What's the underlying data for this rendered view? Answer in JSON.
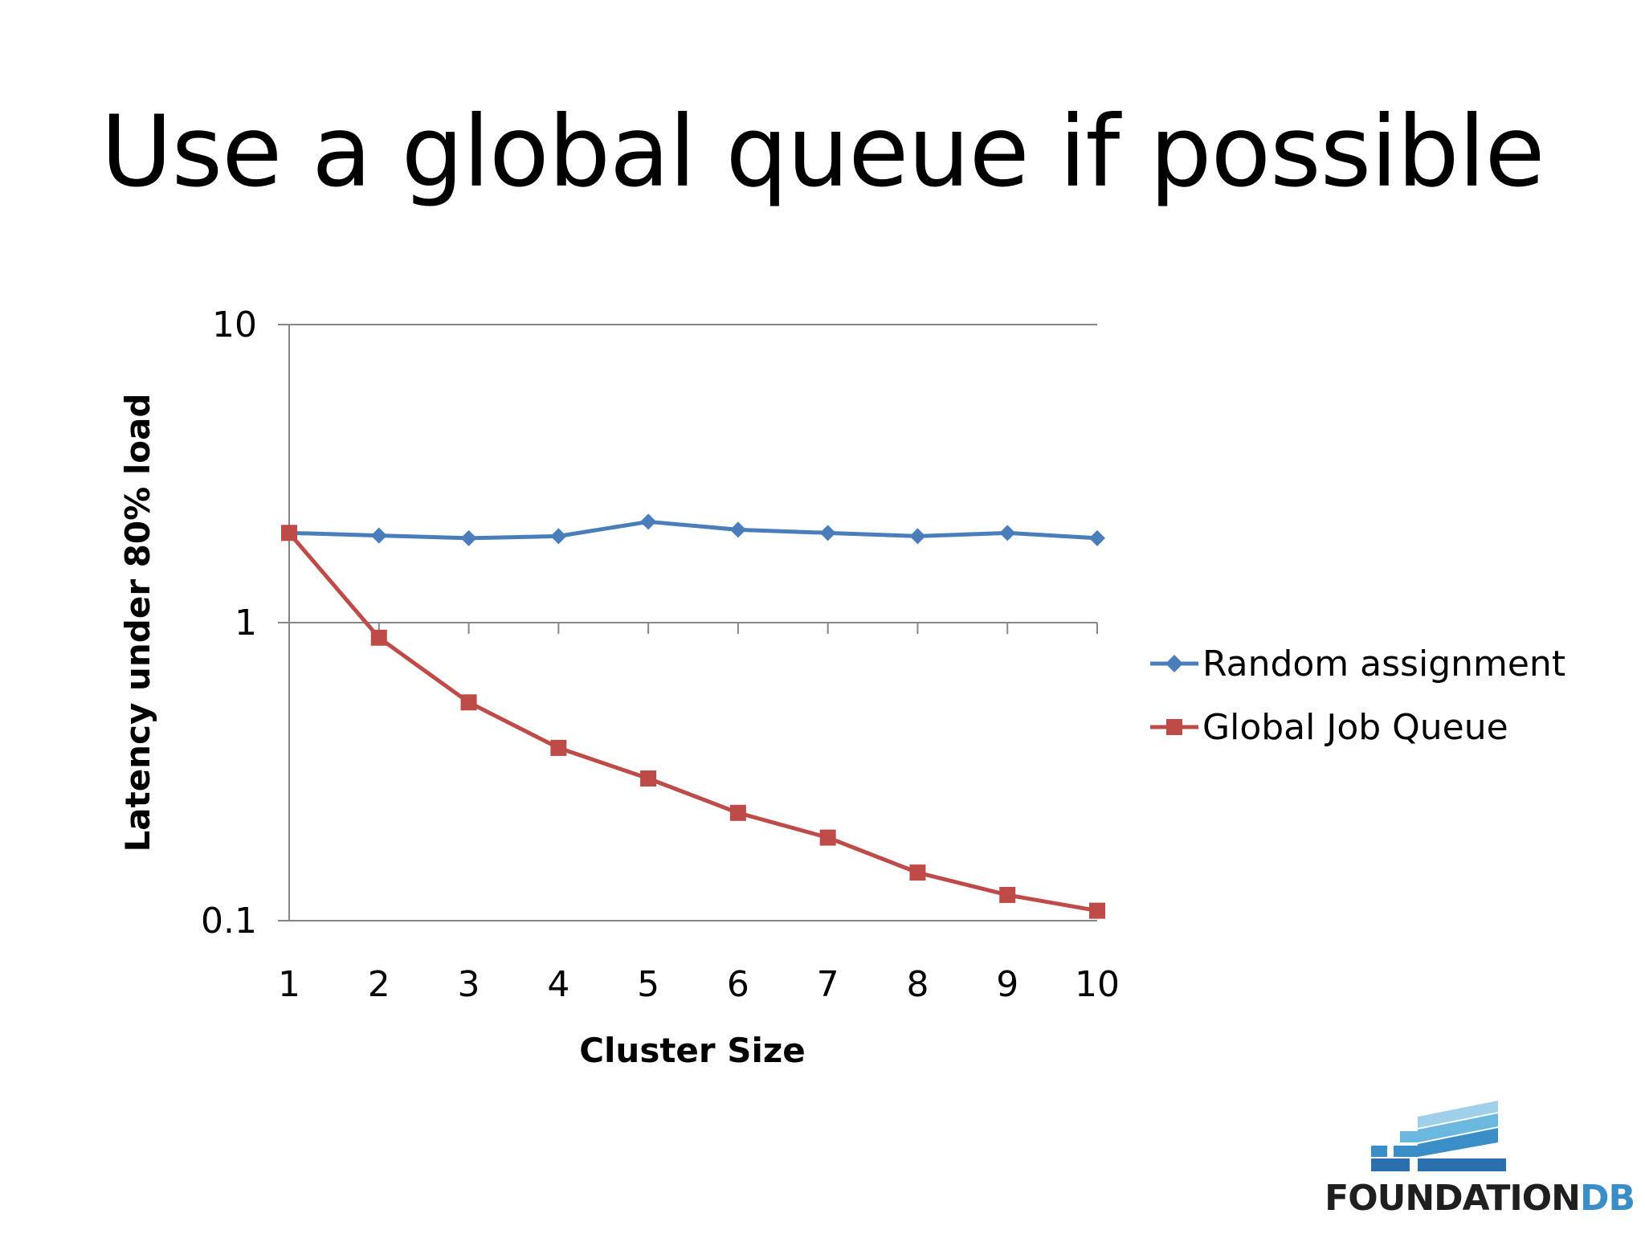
{
  "slide": {
    "title": "Use a global queue if possible"
  },
  "logo": {
    "name": "FOUNDATION",
    "accent": "DB"
  },
  "colors": {
    "background": "#ffffff",
    "axis": "#868686",
    "random_series": "#4a7ebb",
    "global_series": "#be4b48",
    "logo_text": "#1f1f1f",
    "logo_accent": "#3a8ec8"
  },
  "chart_data": {
    "type": "line",
    "xlabel": "Cluster Size",
    "ylabel": "Latency under 80% load",
    "x": [
      1,
      2,
      3,
      4,
      5,
      6,
      7,
      8,
      9,
      10
    ],
    "x_tick_labels": [
      "1",
      "2",
      "3",
      "4",
      "5",
      "6",
      "7",
      "8",
      "9",
      "10"
    ],
    "y_scale": "log",
    "ylim": [
      0.1,
      10
    ],
    "y_tick_labels": [
      "10",
      "1",
      "0.1"
    ],
    "y_ticks": [
      10,
      1,
      0.1
    ],
    "grid": "major horizontal at 10",
    "legend": "right",
    "series": [
      {
        "name": "Random assignment",
        "marker": "diamond",
        "color": "#4a7ebb",
        "values": [
          2.0,
          1.96,
          1.92,
          1.95,
          2.18,
          2.05,
          2.0,
          1.95,
          2.0,
          1.92
        ]
      },
      {
        "name": "Global Job Queue",
        "marker": "square",
        "color": "#be4b48",
        "values": [
          2.0,
          0.89,
          0.54,
          0.38,
          0.3,
          0.23,
          0.19,
          0.145,
          0.122,
          0.108
        ]
      }
    ]
  }
}
